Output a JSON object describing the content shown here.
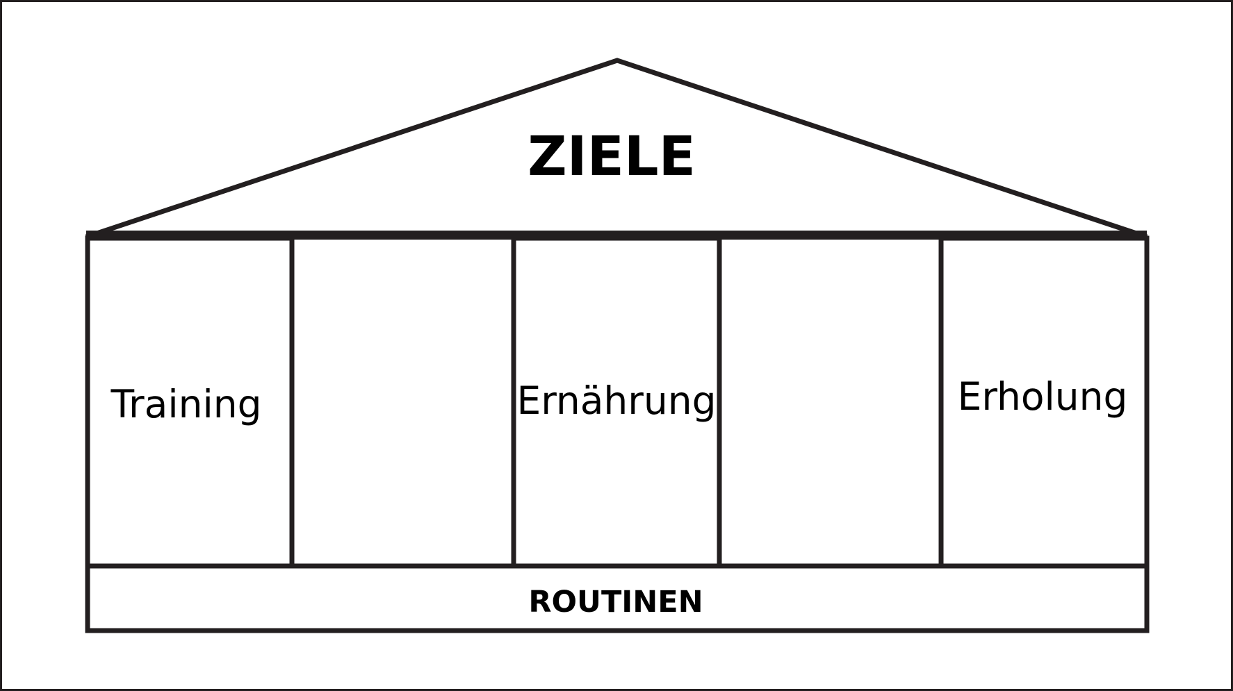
{
  "roof": {
    "label": "ZIELE"
  },
  "pillars": [
    {
      "label": "Training"
    },
    {
      "label": "Ernährung"
    },
    {
      "label": "Erholung"
    }
  ],
  "foundation": {
    "label": "ROUTINEN"
  },
  "colors": {
    "stroke": "#231f20",
    "text": "#000000",
    "background": "#ffffff"
  }
}
